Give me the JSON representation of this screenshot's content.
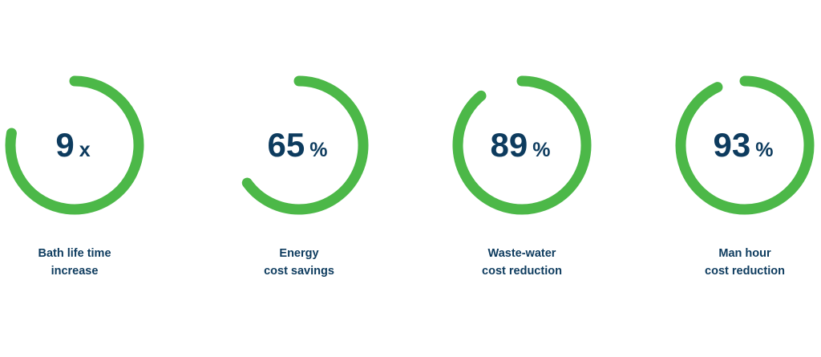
{
  "chart_data": {
    "type": "ring",
    "color": "#4cb848",
    "items": [
      {
        "value": 9,
        "unit": "x",
        "ring_percent": 78,
        "label": [
          "Bath life time",
          "increase"
        ]
      },
      {
        "value": 65,
        "unit": "%",
        "ring_percent": 65,
        "label": [
          "Energy",
          "cost savings"
        ]
      },
      {
        "value": 89,
        "unit": "%",
        "ring_percent": 89,
        "label": [
          "Waste-water",
          "cost reduction"
        ]
      },
      {
        "value": 93,
        "unit": "%",
        "ring_percent": 93,
        "label": [
          "Man hour",
          "cost reduction"
        ]
      }
    ]
  }
}
